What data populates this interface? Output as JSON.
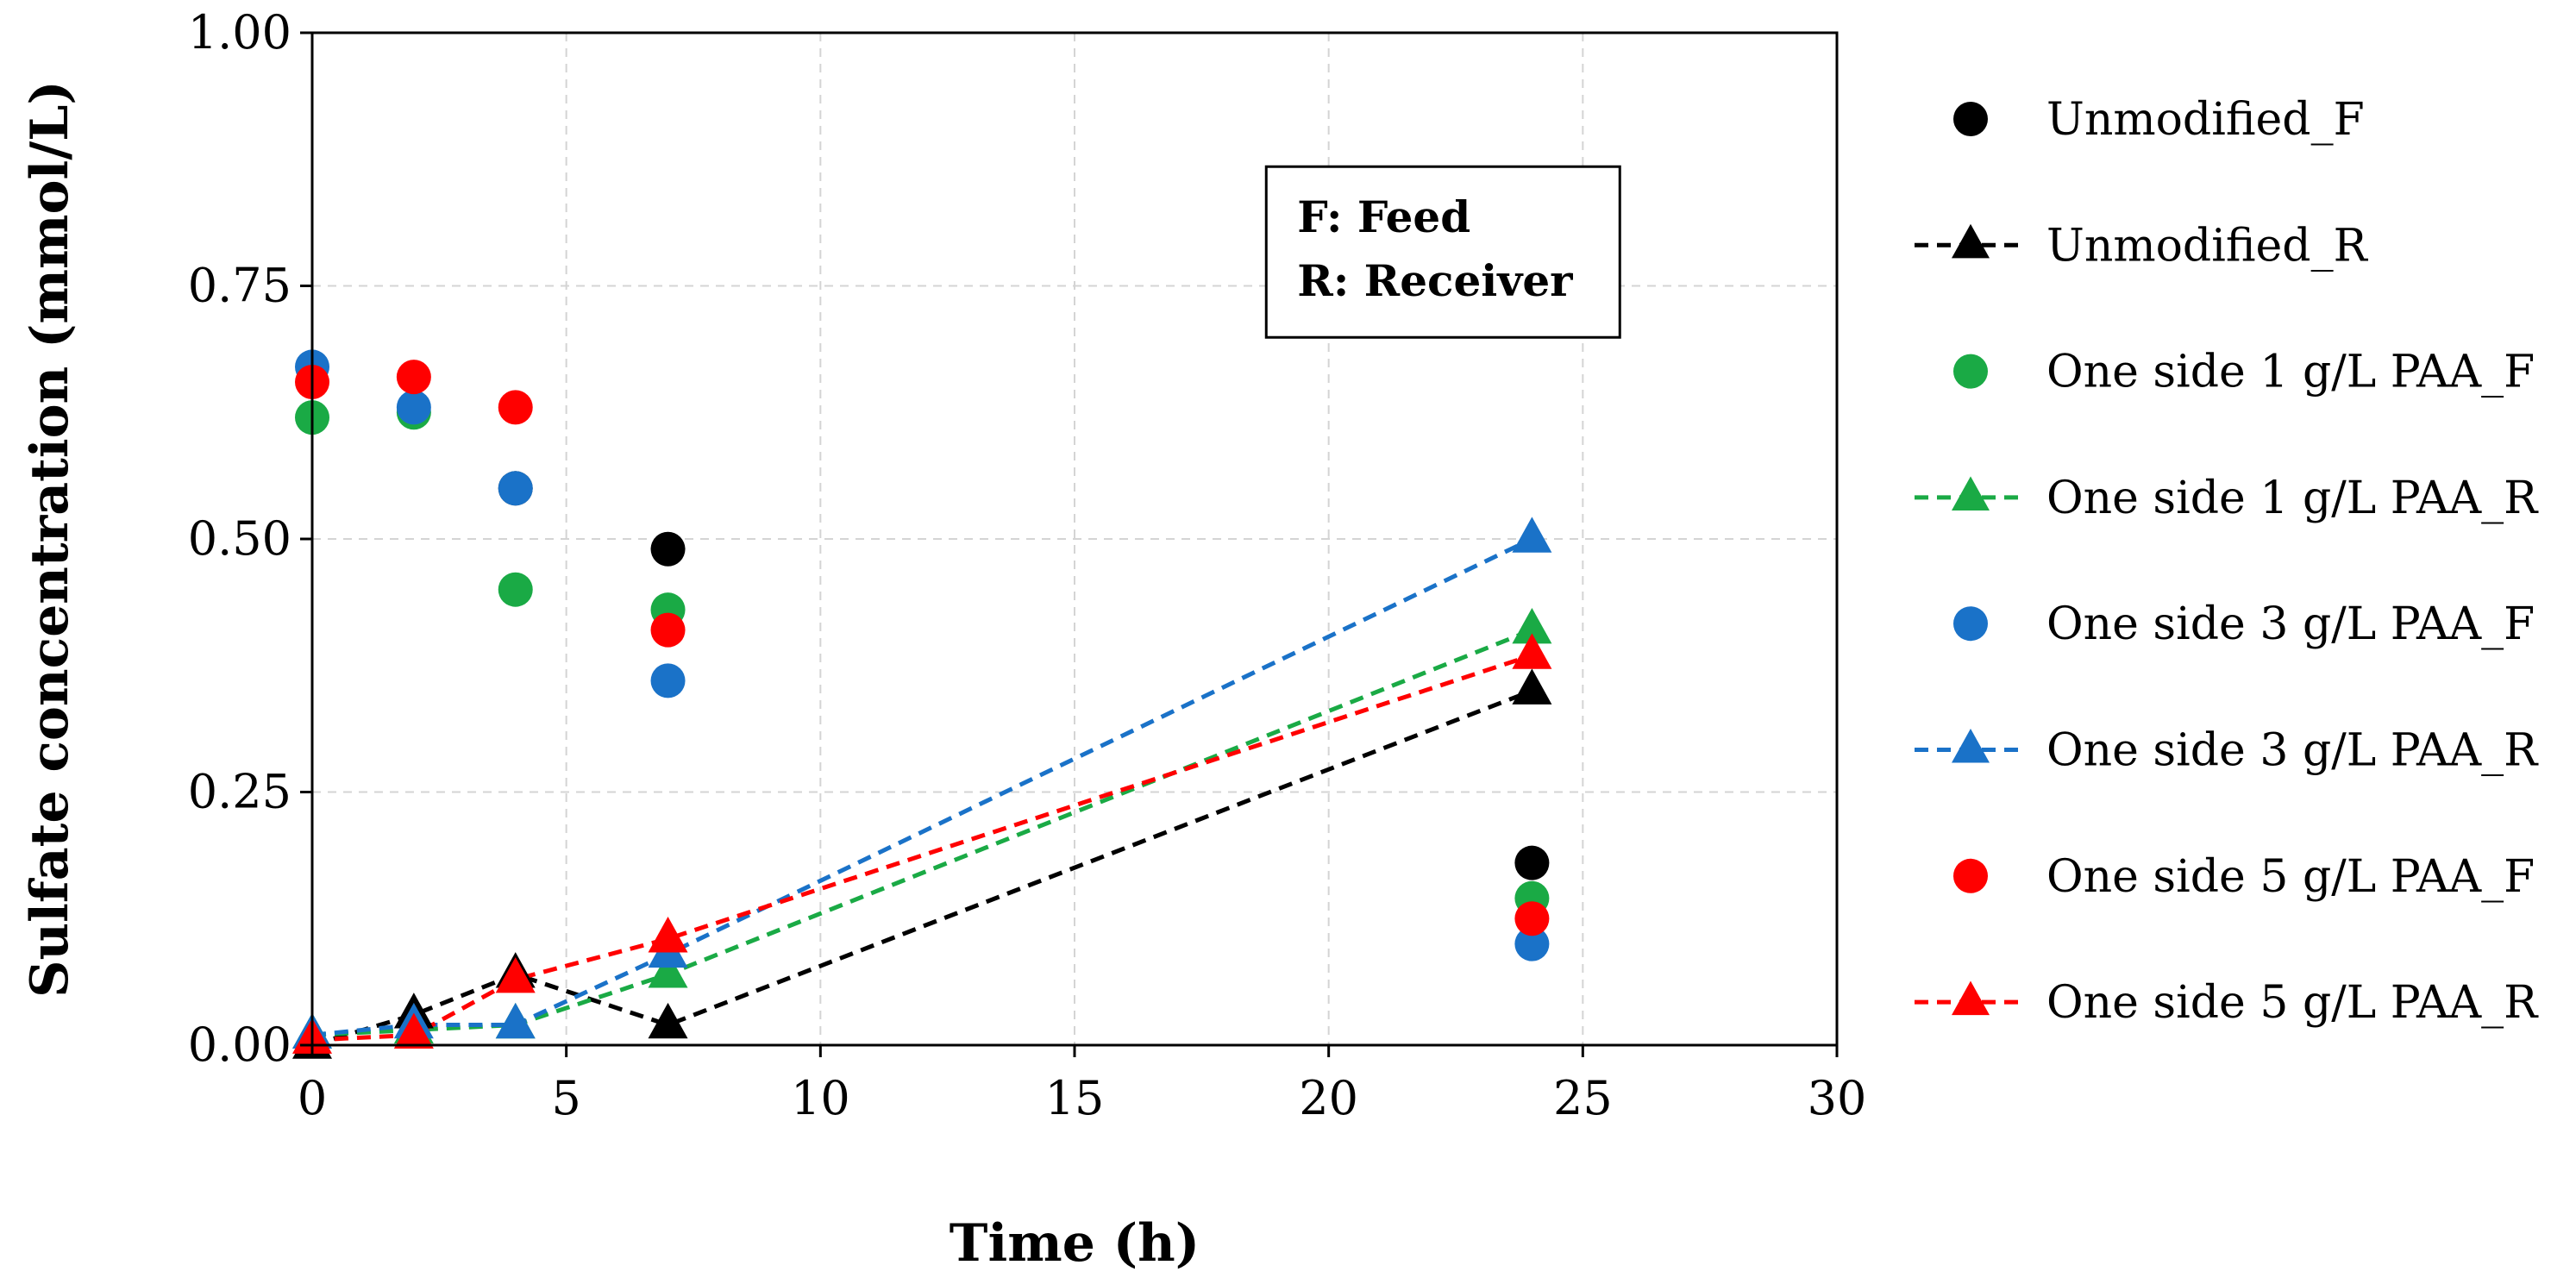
{
  "chart_data": {
    "type": "scatter",
    "title": "",
    "xlabel": "Time (h)",
    "ylabel": "Sulfate concentration (mmol/L)",
    "xlim": [
      0,
      30
    ],
    "ylim": [
      0,
      1
    ],
    "x_ticks": [
      0,
      5,
      10,
      15,
      20,
      25,
      30
    ],
    "x_tick_labels": [
      "0",
      "5",
      "10",
      "15",
      "20",
      "25",
      "30"
    ],
    "y_ticks": [
      0,
      0.25,
      0.5,
      0.75,
      1
    ],
    "y_tick_labels": [
      "0.00",
      "0.25",
      "0.50",
      "0.75",
      "1.00"
    ],
    "grid": true,
    "legend_position": "right",
    "annotation": {
      "lines": [
        "F: Feed",
        "R: Receiver"
      ],
      "x": 22.25,
      "y": 0.74
    },
    "series": [
      {
        "name": "Unmodified_F",
        "color": "#000000",
        "marker": "circle",
        "line": "none",
        "x": [
          4,
          7,
          24
        ],
        "y": [
          0.55,
          0.49,
          0.18
        ]
      },
      {
        "name": "Unmodified_R",
        "color": "#000000",
        "marker": "triangle",
        "line": "dashed",
        "x": [
          0,
          2,
          4,
          7,
          24
        ],
        "y": [
          0.0,
          0.03,
          0.07,
          0.02,
          0.35
        ]
      },
      {
        "name": "One side 1 g/L PAA_F",
        "color": "#1aaa45",
        "marker": "circle",
        "line": "none",
        "x": [
          0,
          2,
          4,
          7,
          24
        ],
        "y": [
          0.62,
          0.625,
          0.45,
          0.43,
          0.145
        ]
      },
      {
        "name": "One side 1 g/L PAA_R",
        "color": "#1aaa45",
        "marker": "triangle",
        "line": "dashed",
        "x": [
          0,
          2,
          4,
          7,
          24
        ],
        "y": [
          0.01,
          0.015,
          0.02,
          0.07,
          0.41
        ]
      },
      {
        "name": "One side 3 g/L PAA_F",
        "color": "#1a72c8",
        "marker": "circle",
        "line": "none",
        "x": [
          0,
          2,
          4,
          7,
          24
        ],
        "y": [
          0.67,
          0.63,
          0.55,
          0.36,
          0.1
        ]
      },
      {
        "name": "One side 3 g/L PAA_R",
        "color": "#1a72c8",
        "marker": "triangle",
        "line": "dashed",
        "x": [
          0,
          2,
          4,
          7,
          24
        ],
        "y": [
          0.01,
          0.02,
          0.02,
          0.09,
          0.5
        ]
      },
      {
        "name": "One side 5 g/L PAA_F",
        "color": "#ff0000",
        "marker": "circle",
        "line": "none",
        "x": [
          0,
          2,
          4,
          7,
          24
        ],
        "y": [
          0.655,
          0.66,
          0.63,
          0.41,
          0.125
        ]
      },
      {
        "name": "One side 5 g/L PAA_R",
        "color": "#ff0000",
        "marker": "triangle",
        "line": "dashed",
        "x": [
          0,
          2,
          4,
          7,
          24
        ],
        "y": [
          0.005,
          0.01,
          0.065,
          0.105,
          0.385
        ]
      }
    ]
  }
}
